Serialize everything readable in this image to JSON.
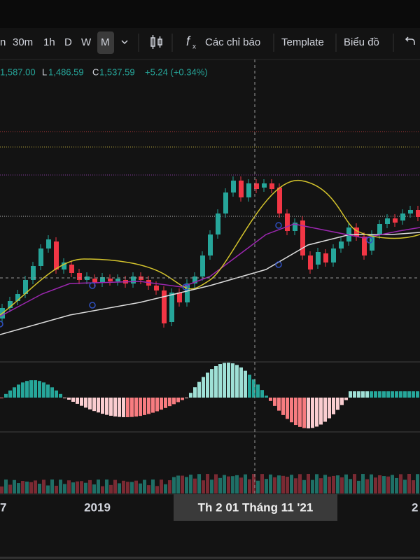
{
  "toolbar": {
    "intervals": [
      "n",
      "30m",
      "1h",
      "D",
      "W",
      "M"
    ],
    "indicators": "Các chỉ báo",
    "template": "Template",
    "chart": "Biểu đồ"
  },
  "legend": {
    "high": "1,587.00",
    "low_label": "L",
    "low": "1,486.59",
    "close_label": "C",
    "close": "1,537.59",
    "change": "+5.24 (+0.34%)"
  },
  "x_axis": {
    "labels": [
      "7",
      "2019",
      "2"
    ],
    "crosshair": "Th 2 01 Tháng 11 '21"
  }
}
